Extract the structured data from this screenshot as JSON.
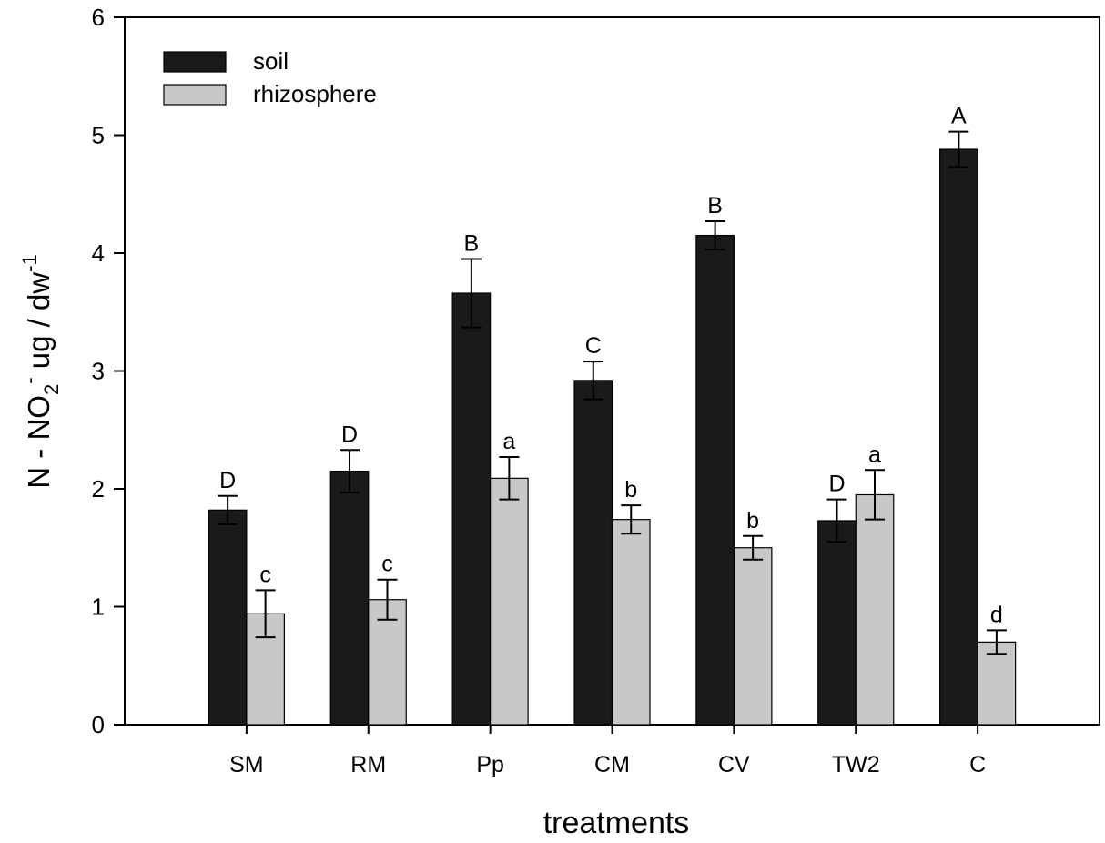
{
  "chart_data": {
    "type": "bar",
    "x_label": "treatments",
    "y_label": [
      {
        "text": "N - NO"
      },
      {
        "text": "2",
        "baseline": "sub"
      },
      {
        "text": "-",
        "baseline": "super"
      },
      {
        "text": " ug / dw"
      },
      {
        "text": "-1",
        "baseline": "super"
      }
    ],
    "categories": [
      "SM",
      "RM",
      "Pp",
      "CM",
      "CV",
      "TW2",
      "C"
    ],
    "series": [
      {
        "name": "soil",
        "color": "#1a1a1a",
        "values": [
          1.82,
          2.15,
          3.66,
          2.92,
          4.15,
          1.73,
          4.88
        ],
        "errors": [
          0.12,
          0.18,
          0.29,
          0.16,
          0.12,
          0.18,
          0.15
        ],
        "letters": [
          "D",
          "D",
          "B",
          "C",
          "B",
          "D",
          "A"
        ]
      },
      {
        "name": "rhizosphere",
        "color": "#c8c8c8",
        "values": [
          0.94,
          1.06,
          2.09,
          1.74,
          1.5,
          1.95,
          0.7
        ],
        "errors": [
          0.2,
          0.17,
          0.18,
          0.12,
          0.1,
          0.21,
          0.1
        ],
        "letters": [
          "c",
          "c",
          "a",
          "b",
          "b",
          "a",
          "d"
        ]
      }
    ],
    "ylim": [
      0,
      6
    ],
    "yticks": [
      0,
      1,
      2,
      3,
      4,
      5,
      6
    ],
    "grid": false,
    "legend": "upper-left"
  }
}
